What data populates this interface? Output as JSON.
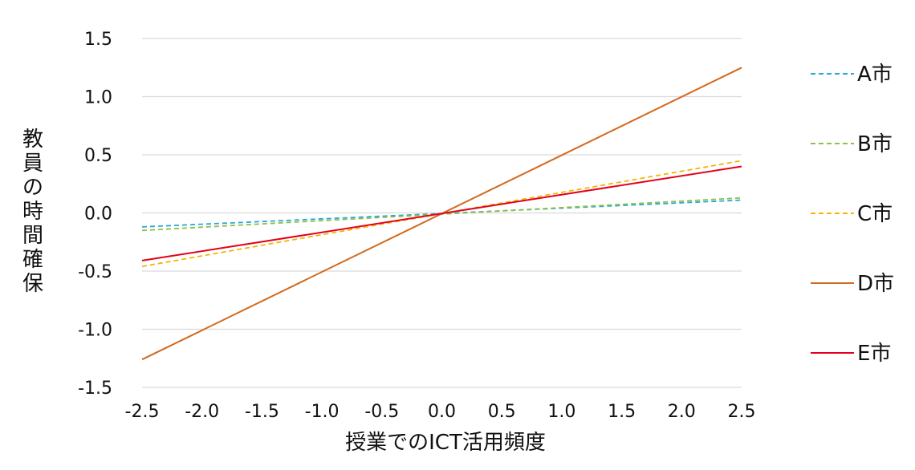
{
  "chart_data": {
    "type": "line",
    "title": "",
    "xlabel": "授業でのICT活用頻度",
    "ylabel": "教員の時間確保",
    "x": [
      -2.5,
      2.5
    ],
    "xlim": [
      -2.5,
      2.5
    ],
    "ylim": [
      -1.5,
      1.5
    ],
    "x_ticks": [
      -2.5,
      -2.0,
      -1.5,
      -1.0,
      -0.5,
      0.0,
      0.5,
      1.0,
      1.5,
      2.0,
      2.5
    ],
    "x_tick_labels": [
      "-2.5",
      "-2.0",
      "-1.5",
      "-1.0",
      "-0.5",
      "0.0",
      "0.5",
      "1.0",
      "1.5",
      "2.0",
      "2.5"
    ],
    "y_ticks": [
      1.5,
      1.0,
      0.5,
      0.0,
      -0.5,
      -1.0,
      -1.5
    ],
    "y_tick_labels": [
      "1.5",
      "1.0",
      "0.5",
      "0.0",
      "-0.5",
      "-1.0",
      "-1.5"
    ],
    "grid": "horizontal",
    "legend_position": "right",
    "series": [
      {
        "name": "A市",
        "values": [
          -0.12,
          0.11
        ],
        "color": "#29a9d6",
        "style": "dashed"
      },
      {
        "name": "B市",
        "values": [
          -0.15,
          0.13
        ],
        "color": "#8cc04a",
        "style": "dashed"
      },
      {
        "name": "C市",
        "values": [
          -0.46,
          0.45
        ],
        "color": "#f5b400",
        "style": "dashed"
      },
      {
        "name": "D市",
        "values": [
          -1.26,
          1.25
        ],
        "color": "#d2691e",
        "style": "solid"
      },
      {
        "name": "E市",
        "values": [
          -0.41,
          0.4
        ],
        "color": "#e3001b",
        "style": "solid"
      }
    ]
  }
}
